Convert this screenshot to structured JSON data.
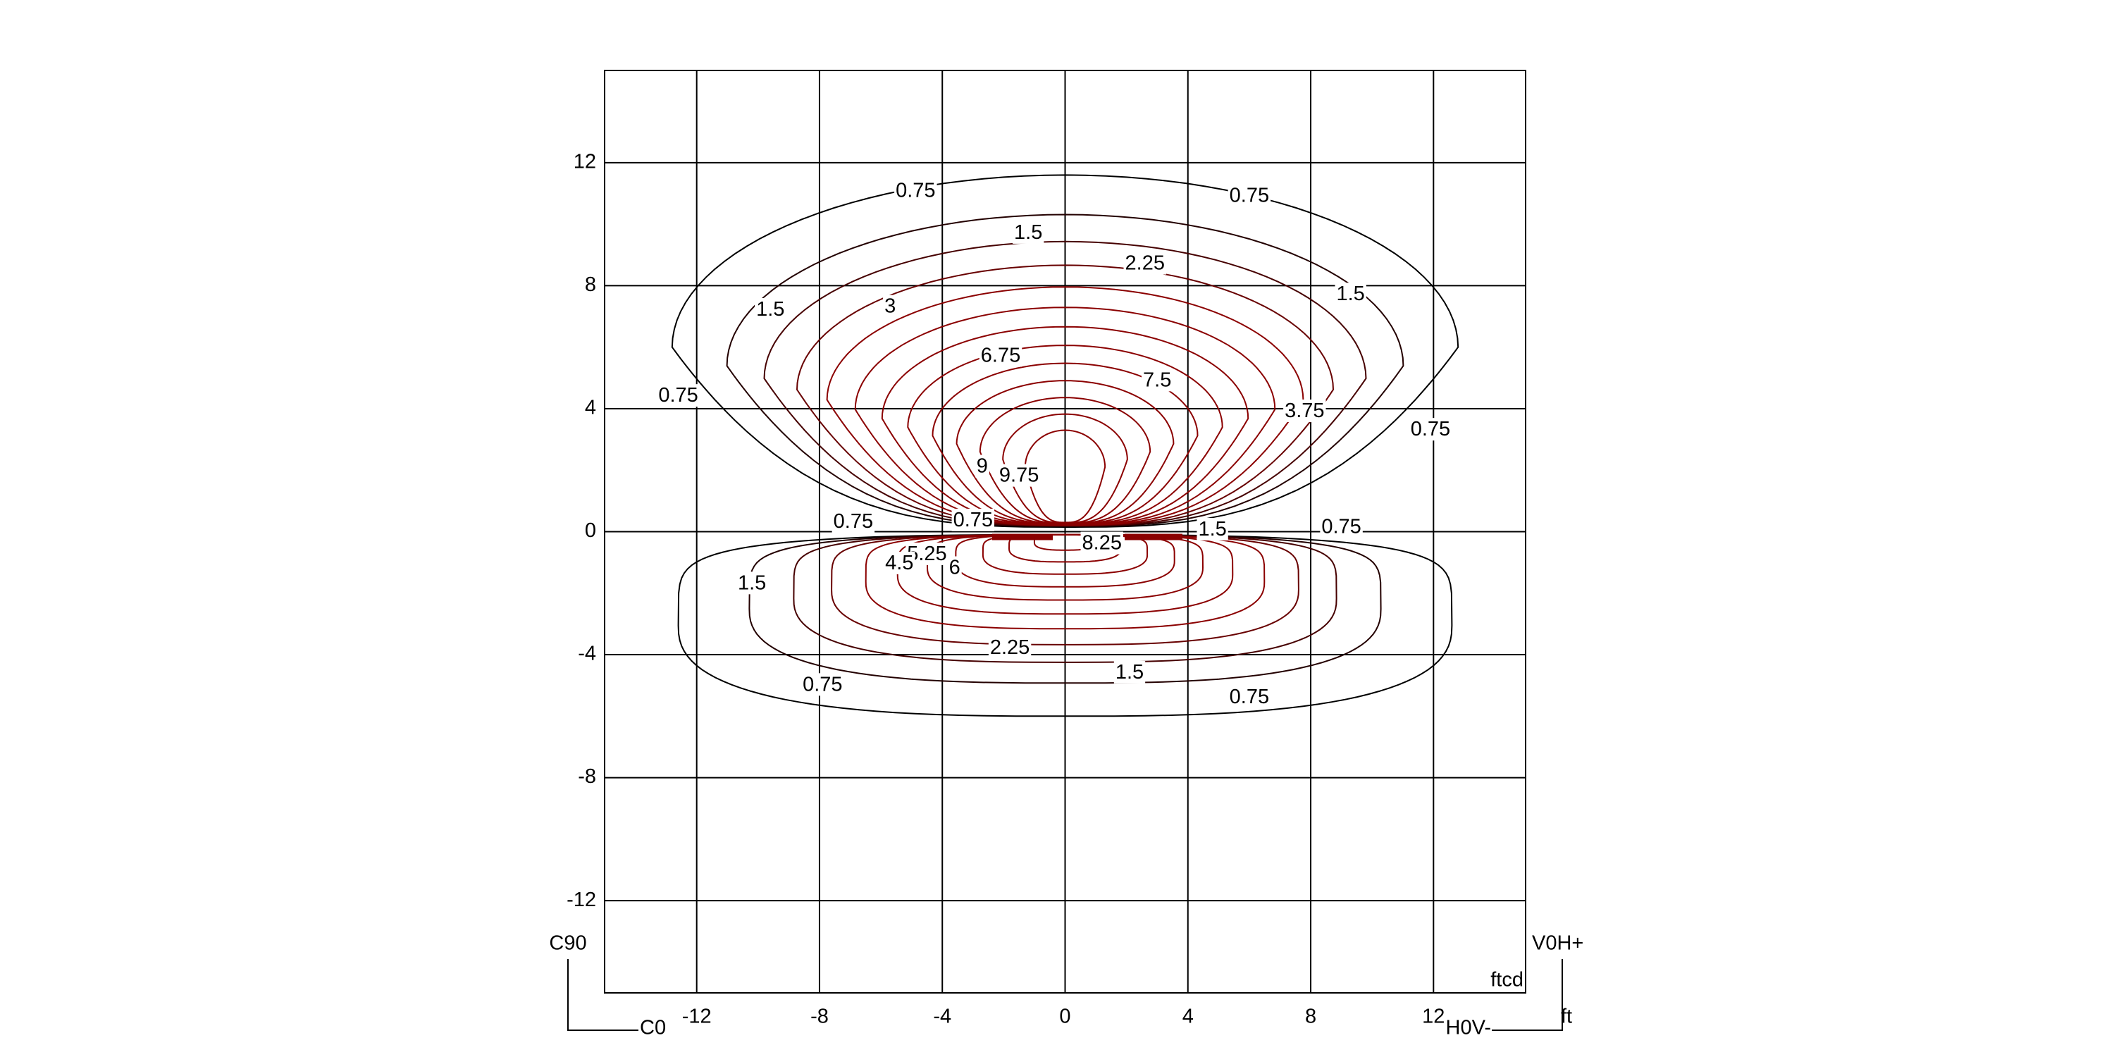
{
  "chart_data": {
    "type": "contour",
    "xlim": [
      -15,
      15
    ],
    "ylim": [
      -15,
      15
    ],
    "xticks": [
      -12,
      -8,
      -4,
      0,
      4,
      8,
      12
    ],
    "yticks": [
      -12,
      -8,
      -4,
      0,
      4,
      8,
      12
    ],
    "grid": true,
    "upper_levels": [
      0.75,
      1.5,
      2.25,
      3,
      3.75,
      4.5,
      5.25,
      6,
      6.75,
      7.5,
      8.25,
      9,
      9.75
    ],
    "lower_levels": [
      0.75,
      1.5,
      2.25,
      3,
      3.75,
      4.5,
      5.25,
      6,
      6.75,
      7.5,
      8.25
    ],
    "color_low": "#000000",
    "color_high": "#8b0000",
    "contour_labels": [
      {
        "value": 0.75,
        "x": -4.87,
        "y": 11.06
      },
      {
        "value": 0.75,
        "x": 6.0,
        "y": 10.9
      },
      {
        "value": 1.5,
        "x": -1.2,
        "y": 9.7
      },
      {
        "value": 2.25,
        "x": 2.6,
        "y": 8.7
      },
      {
        "value": 1.5,
        "x": -9.6,
        "y": 7.2
      },
      {
        "value": 1.5,
        "x": 9.3,
        "y": 7.7
      },
      {
        "value": 3,
        "x": -5.7,
        "y": 7.3
      },
      {
        "value": 6.75,
        "x": -2.1,
        "y": 5.7
      },
      {
        "value": 7.5,
        "x": 3.0,
        "y": 4.9
      },
      {
        "value": 0.75,
        "x": -12.6,
        "y": 4.4
      },
      {
        "value": 3.75,
        "x": 7.8,
        "y": 3.9
      },
      {
        "value": 0.75,
        "x": 11.9,
        "y": 3.3
      },
      {
        "value": 9,
        "x": -2.7,
        "y": 2.1
      },
      {
        "value": 9.75,
        "x": -1.5,
        "y": 1.8
      },
      {
        "value": 0.75,
        "x": -6.9,
        "y": 0.3
      },
      {
        "value": 0.75,
        "x": -3.0,
        "y": 0.35
      },
      {
        "value": 1.5,
        "x": 4.8,
        "y": 0.05
      },
      {
        "value": 0.75,
        "x": 9.0,
        "y": 0.13
      },
      {
        "value": 5.25,
        "x": -4.5,
        "y": -0.75
      },
      {
        "value": 4.5,
        "x": -5.4,
        "y": -1.05
      },
      {
        "value": 6,
        "x": -3.6,
        "y": -1.2
      },
      {
        "value": 8.25,
        "x": 1.2,
        "y": -0.4
      },
      {
        "value": 1.5,
        "x": -10.2,
        "y": -1.7
      },
      {
        "value": 2.25,
        "x": -1.8,
        "y": -3.8
      },
      {
        "value": 1.5,
        "x": 2.1,
        "y": -4.6
      },
      {
        "value": 0.75,
        "x": -7.9,
        "y": -5.0
      },
      {
        "value": 0.75,
        "x": 6.0,
        "y": -5.4
      }
    ],
    "value_unit": "ftcd",
    "axis_unit": "ft",
    "corner_labels": {
      "left_top": "C90",
      "left_bottom": "C0",
      "right_top": "V0H+",
      "right_bottom": "H0V-"
    }
  }
}
